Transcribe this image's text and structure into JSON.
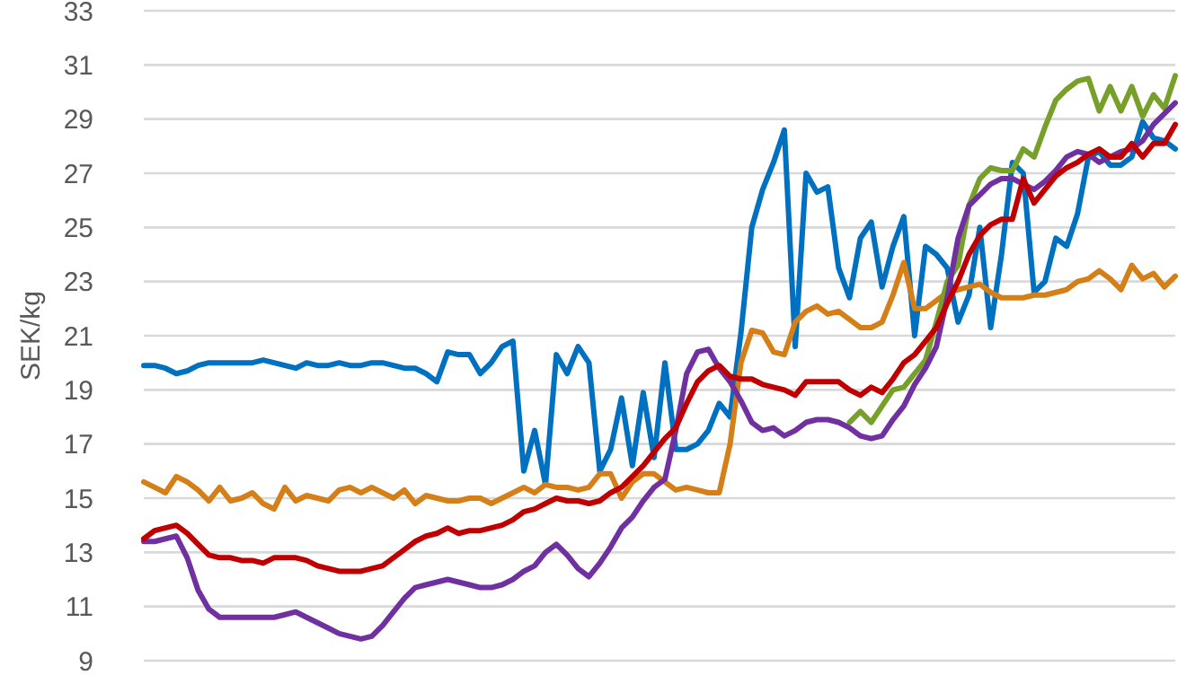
{
  "chart_data": {
    "type": "line",
    "ylabel": "SEK/kg",
    "ylim": [
      9,
      33
    ],
    "yticks": [
      9,
      11,
      13,
      15,
      17,
      19,
      21,
      23,
      25,
      27,
      29,
      31,
      33
    ],
    "grid": "y",
    "marker": "none",
    "line_style": "solid",
    "categories": [
      null,
      null,
      null,
      null,
      null,
      null,
      null,
      null,
      null,
      null,
      null,
      null,
      null,
      null,
      null,
      null,
      null,
      null,
      null,
      null,
      null,
      null,
      null,
      null,
      null,
      null,
      null,
      null,
      null,
      null,
      null,
      null,
      null,
      null,
      null,
      null,
      null,
      null,
      null,
      null,
      null,
      null,
      null,
      null,
      null,
      null,
      null,
      null,
      null,
      null,
      null,
      null,
      null,
      null,
      null,
      null,
      null,
      null,
      null,
      null,
      null,
      null,
      null,
      null,
      null,
      null,
      null,
      null,
      null,
      null,
      null,
      null,
      null,
      null,
      null,
      null,
      null,
      null,
      null,
      null,
      null,
      null,
      null,
      null,
      null,
      null,
      null,
      null,
      null,
      null,
      null,
      null,
      null,
      null,
      null,
      null
    ],
    "series": [
      {
        "color": "#0070c0",
        "values": [
          19.9,
          19.9,
          19.8,
          19.6,
          19.7,
          19.9,
          20.0,
          20.0,
          20.0,
          20.0,
          20.0,
          20.1,
          20.0,
          19.9,
          19.8,
          20.0,
          19.9,
          19.9,
          20.0,
          19.9,
          19.9,
          20.0,
          20.0,
          19.9,
          19.8,
          19.8,
          19.6,
          19.3,
          20.4,
          20.3,
          20.3,
          19.6,
          20.0,
          20.6,
          20.8,
          16.0,
          17.5,
          15.5,
          20.3,
          19.6,
          20.6,
          20.0,
          16.0,
          16.8,
          18.7,
          16.2,
          18.9,
          16.5,
          20.0,
          16.8,
          16.8,
          17.0,
          17.5,
          18.5,
          18.0,
          21.1,
          25.0,
          26.4,
          27.4,
          28.6,
          20.6,
          27.0,
          26.3,
          26.5,
          23.5,
          22.4,
          24.6,
          25.2,
          22.8,
          24.3,
          25.4,
          21.0,
          24.3,
          24.0,
          23.5,
          21.5,
          22.5,
          25.0,
          21.3,
          24.0,
          27.4,
          27.0,
          22.6,
          23.0,
          24.6,
          24.3,
          25.5,
          27.6,
          27.8,
          27.3,
          27.3,
          27.6,
          28.9,
          28.3,
          28.2,
          27.9
        ]
      },
      {
        "color": "#d47f17",
        "values": [
          15.6,
          15.4,
          15.2,
          15.8,
          15.6,
          15.3,
          14.9,
          15.4,
          14.9,
          15.0,
          15.2,
          14.8,
          14.6,
          15.4,
          14.9,
          15.1,
          15.0,
          14.9,
          15.3,
          15.4,
          15.2,
          15.4,
          15.2,
          15.0,
          15.3,
          14.8,
          15.1,
          15.0,
          14.9,
          14.9,
          15.0,
          15.0,
          14.8,
          15.0,
          15.2,
          15.4,
          15.2,
          15.5,
          15.4,
          15.4,
          15.3,
          15.4,
          15.9,
          15.9,
          15.0,
          15.6,
          15.9,
          15.9,
          15.6,
          15.3,
          15.4,
          15.3,
          15.2,
          15.2,
          17.0,
          20.0,
          21.2,
          21.1,
          20.4,
          20.3,
          21.5,
          21.9,
          22.1,
          21.8,
          21.9,
          21.6,
          21.3,
          21.3,
          21.5,
          22.5,
          23.7,
          22.0,
          22.0,
          22.3,
          22.6,
          22.7,
          22.8,
          22.9,
          22.6,
          22.4,
          22.4,
          22.4,
          22.5,
          22.5,
          22.6,
          22.7,
          23.0,
          23.1,
          23.4,
          23.1,
          22.7,
          23.6,
          23.1,
          23.3,
          22.8,
          23.2
        ]
      },
      {
        "color": "#77a02a",
        "values": [
          null,
          null,
          null,
          null,
          null,
          null,
          null,
          null,
          null,
          null,
          null,
          null,
          null,
          null,
          null,
          null,
          null,
          null,
          null,
          null,
          null,
          null,
          null,
          null,
          null,
          null,
          null,
          null,
          null,
          null,
          null,
          null,
          null,
          null,
          null,
          null,
          null,
          null,
          null,
          null,
          null,
          null,
          null,
          null,
          null,
          null,
          null,
          null,
          null,
          null,
          null,
          null,
          null,
          null,
          null,
          null,
          null,
          null,
          null,
          null,
          null,
          null,
          null,
          null,
          null,
          17.8,
          18.2,
          17.8,
          18.4,
          19.0,
          19.1,
          19.6,
          20.1,
          21.5,
          23.0,
          23.6,
          25.8,
          26.8,
          27.2,
          27.1,
          27.1,
          27.9,
          27.6,
          28.7,
          29.7,
          30.1,
          30.4,
          30.5,
          29.3,
          30.2,
          29.3,
          30.2,
          29.1,
          29.9,
          29.4,
          30.6
        ]
      },
      {
        "color": "#7030a0",
        "values": [
          13.4,
          13.4,
          13.5,
          13.6,
          12.8,
          11.6,
          10.9,
          10.6,
          10.6,
          10.6,
          10.6,
          10.6,
          10.6,
          10.7,
          10.8,
          10.6,
          10.4,
          10.2,
          10.0,
          9.9,
          9.8,
          9.9,
          10.3,
          10.8,
          11.3,
          11.7,
          11.8,
          11.9,
          12.0,
          11.9,
          11.8,
          11.7,
          11.7,
          11.8,
          12.0,
          12.3,
          12.5,
          13.0,
          13.3,
          12.9,
          12.4,
          12.1,
          12.6,
          13.2,
          13.9,
          14.3,
          14.9,
          15.4,
          15.7,
          17.5,
          19.6,
          20.4,
          20.5,
          19.8,
          19.3,
          18.6,
          17.8,
          17.5,
          17.6,
          17.3,
          17.5,
          17.8,
          17.9,
          17.9,
          17.8,
          17.6,
          17.3,
          17.2,
          17.3,
          17.9,
          18.4,
          19.2,
          19.8,
          20.6,
          22.4,
          24.6,
          25.8,
          26.2,
          26.6,
          26.8,
          26.8,
          26.6,
          26.4,
          26.7,
          27.1,
          27.6,
          27.8,
          27.7,
          27.4,
          27.6,
          27.8,
          27.9,
          28.2,
          28.8,
          29.2,
          29.6
        ]
      },
      {
        "color": "#c00000",
        "values": [
          13.5,
          13.8,
          13.9,
          14.0,
          13.7,
          13.3,
          12.9,
          12.8,
          12.8,
          12.7,
          12.7,
          12.6,
          12.8,
          12.8,
          12.8,
          12.7,
          12.5,
          12.4,
          12.3,
          12.3,
          12.3,
          12.4,
          12.5,
          12.8,
          13.1,
          13.4,
          13.6,
          13.7,
          13.9,
          13.7,
          13.8,
          13.8,
          13.9,
          14.0,
          14.2,
          14.5,
          14.6,
          14.8,
          15.0,
          14.9,
          14.9,
          14.8,
          14.9,
          15.2,
          15.4,
          15.8,
          16.2,
          16.7,
          17.2,
          17.6,
          18.5,
          19.3,
          19.7,
          19.9,
          19.5,
          19.4,
          19.4,
          19.2,
          19.1,
          19.0,
          18.8,
          19.3,
          19.3,
          19.3,
          19.3,
          19.0,
          18.8,
          19.1,
          18.9,
          19.4,
          20.0,
          20.3,
          20.8,
          21.3,
          22.2,
          23.0,
          24.0,
          24.7,
          25.1,
          25.3,
          25.3,
          26.8,
          25.9,
          26.4,
          26.9,
          27.2,
          27.4,
          27.7,
          27.9,
          27.6,
          27.6,
          28.1,
          27.6,
          28.1,
          28.1,
          28.8
        ]
      }
    ]
  }
}
